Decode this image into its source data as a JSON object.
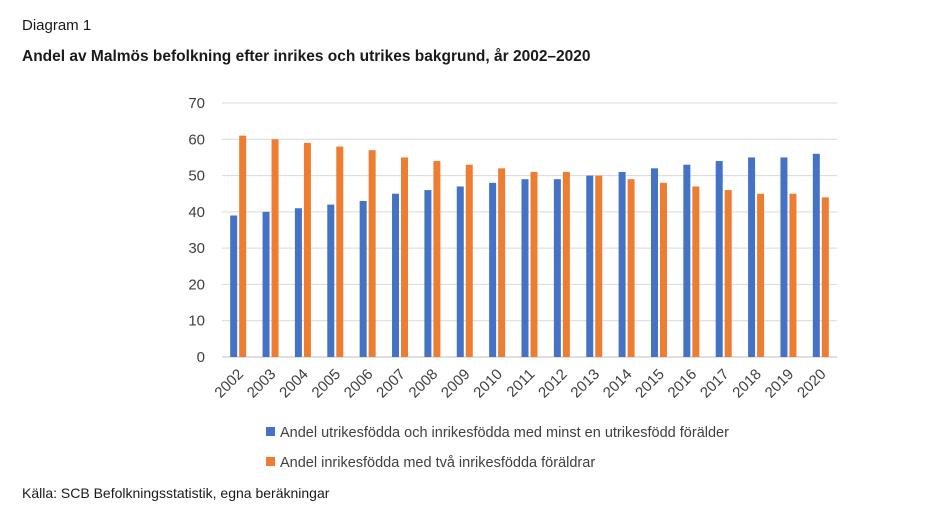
{
  "figure": {
    "label": "Diagram 1",
    "title": "Andel av Malmös befolkning efter inrikes och utrikes bakgrund, år 2002–2020",
    "source": "Källa: SCB Befolkningsstatistik, egna beräkningar"
  },
  "chart_data": {
    "type": "bar",
    "title": "Andel av Malmös befolkning efter inrikes och utrikes bakgrund, år 2002–2020",
    "xlabel": "",
    "ylabel": "",
    "ylim": [
      0,
      70
    ],
    "yticks": [
      0,
      10,
      20,
      30,
      40,
      50,
      60,
      70
    ],
    "grid": true,
    "legend_position": "bottom",
    "categories": [
      "2002",
      "2003",
      "2004",
      "2005",
      "2006",
      "2007",
      "2008",
      "2009",
      "2010",
      "2011",
      "2012",
      "2013",
      "2014",
      "2015",
      "2016",
      "2017",
      "2018",
      "2019",
      "2020"
    ],
    "series": [
      {
        "name": "Andel utrikesfödda och inrikesfödda med minst en utrikesfödd förälder",
        "color": "#4472C4",
        "values": [
          39,
          40,
          41,
          42,
          43,
          45,
          46,
          47,
          48,
          49,
          49,
          50,
          51,
          52,
          53,
          54,
          55,
          55,
          56
        ]
      },
      {
        "name": "Andel inrikesfödda med två inrikesfödda föräldrar",
        "color": "#ED7D31",
        "values": [
          61,
          60,
          59,
          58,
          57,
          55,
          54,
          53,
          52,
          51,
          51,
          50,
          49,
          48,
          47,
          46,
          45,
          45,
          44
        ]
      }
    ]
  }
}
